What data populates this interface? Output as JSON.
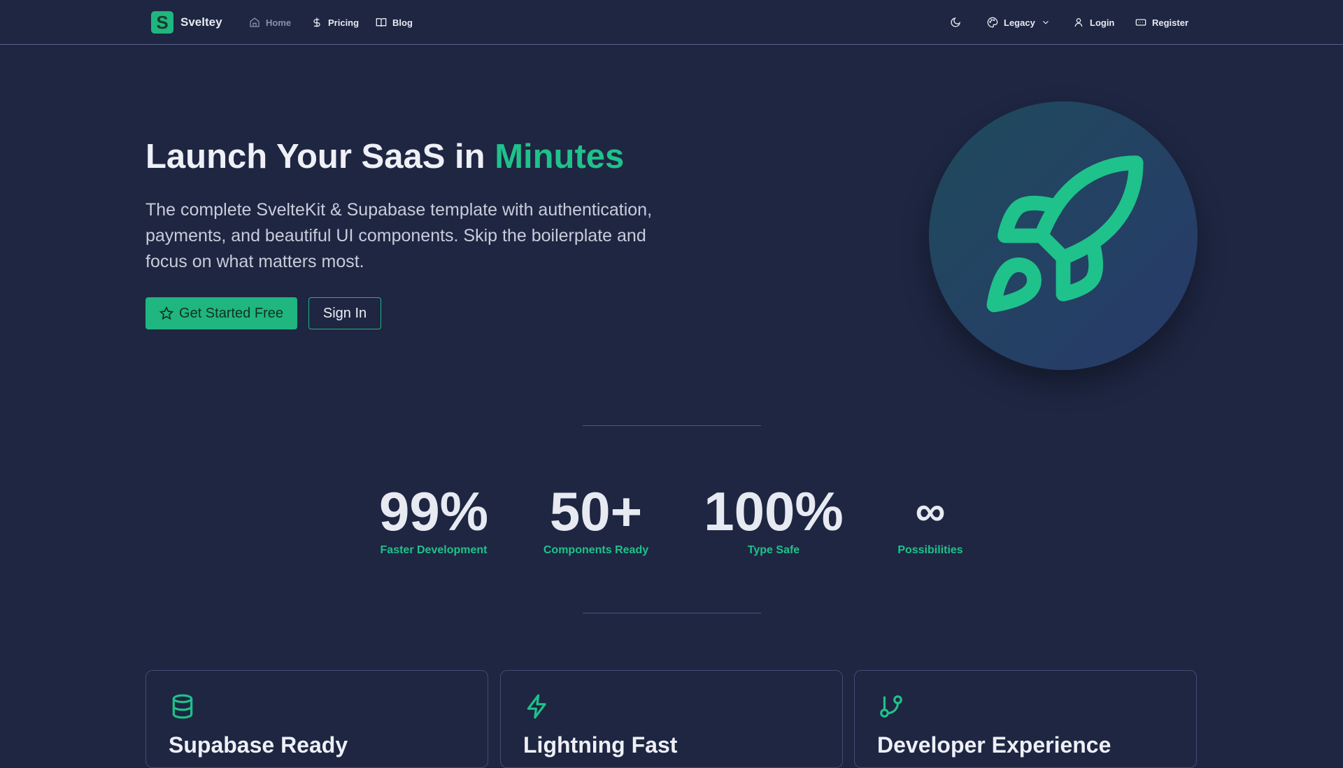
{
  "nav": {
    "brand": "Sveltey",
    "logo_letter": "S",
    "links": [
      {
        "label": "Home",
        "icon": "home-icon"
      },
      {
        "label": "Pricing",
        "icon": "dollar-icon"
      },
      {
        "label": "Blog",
        "icon": "book-icon"
      }
    ],
    "theme_label": "Legacy",
    "login": "Login",
    "register": "Register"
  },
  "hero": {
    "title_main": "Launch Your SaaS in ",
    "title_accent": "Minutes",
    "description": "The complete SvelteKit & Supabase template with authentication, payments, and beautiful UI components. Skip the boilerplate and focus on what matters most.",
    "primary_button": "Get Started Free",
    "secondary_button": "Sign In"
  },
  "stats": [
    {
      "value": "99%",
      "label": "Faster Development"
    },
    {
      "value": "50+",
      "label": "Components Ready"
    },
    {
      "value": "100%",
      "label": "Type Safe"
    },
    {
      "value": "∞",
      "label": "Possibilities"
    }
  ],
  "features": [
    {
      "title": "Supabase Ready",
      "icon": "database-icon"
    },
    {
      "title": "Lightning Fast",
      "icon": "zap-icon"
    },
    {
      "title": "Developer Experience",
      "icon": "git-branch-icon"
    }
  ],
  "colors": {
    "background": "#1e2642",
    "accent": "#1fc28a"
  }
}
